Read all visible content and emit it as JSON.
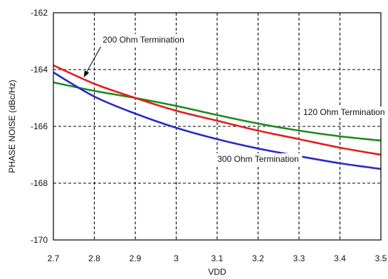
{
  "chart_data": {
    "type": "line",
    "title": "",
    "xlabel": "VDD",
    "ylabel": "PHASE NOISE (dBc/Hz)",
    "xlim": [
      2.7,
      3.5
    ],
    "ylim": [
      -170,
      -162
    ],
    "x_ticks": [
      2.7,
      2.8,
      2.9,
      3.0,
      3.1,
      3.2,
      3.3,
      3.4,
      3.5
    ],
    "x_tick_labels": [
      "2.7",
      "2.8",
      "2.9",
      "3",
      "3.1",
      "3.2",
      "3.3",
      "3.4",
      "3.5"
    ],
    "y_ticks": [
      -170,
      -168,
      -166,
      -164,
      -162
    ],
    "y_tick_labels": [
      "-170",
      "-168",
      "-166",
      "-164",
      "-162"
    ],
    "grid": true,
    "grid_style": "dashed",
    "series": [
      {
        "name": "120 Ohm Termination",
        "color": "#1f8a1f",
        "x": [
          2.7,
          2.8,
          2.9,
          3.0,
          3.1,
          3.2,
          3.3,
          3.4,
          3.5
        ],
        "values": [
          -164.45,
          -164.75,
          -165.0,
          -165.28,
          -165.6,
          -165.9,
          -166.15,
          -166.35,
          -166.5
        ]
      },
      {
        "name": "200 Ohm Termination",
        "color": "#e02020",
        "x": [
          2.7,
          2.8,
          2.9,
          3.0,
          3.1,
          3.2,
          3.3,
          3.4,
          3.5
        ],
        "values": [
          -163.85,
          -164.5,
          -165.0,
          -165.45,
          -165.8,
          -166.15,
          -166.45,
          -166.75,
          -167.0
        ]
      },
      {
        "name": "300 Ohm Termination",
        "color": "#2a2ac8",
        "x": [
          2.7,
          2.8,
          2.9,
          3.0,
          3.1,
          3.2,
          3.3,
          3.4,
          3.5
        ],
        "values": [
          -164.1,
          -164.95,
          -165.55,
          -166.05,
          -166.45,
          -166.78,
          -167.05,
          -167.3,
          -167.5
        ]
      }
    ],
    "annotations": [
      {
        "text": "200 Ohm Termination",
        "x": 2.92,
        "y": -163.05,
        "series": "200 Ohm Termination",
        "arrow_to": {
          "x": 2.775,
          "y": -164.25
        },
        "anchor": "middle"
      },
      {
        "text": "120 Ohm Termination",
        "x": 3.41,
        "y": -165.6,
        "series": "120 Ohm Termination",
        "anchor": "middle"
      },
      {
        "text": "300 Ohm Termination",
        "x": 3.2,
        "y": -167.25,
        "series": "300 Ohm Termination",
        "anchor": "middle"
      }
    ]
  }
}
